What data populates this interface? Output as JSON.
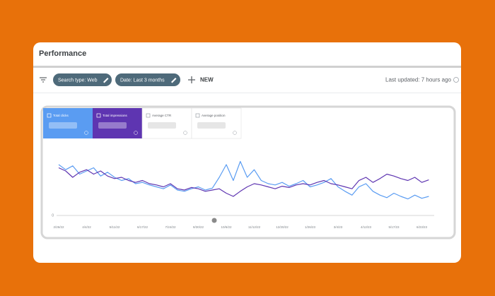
{
  "header": {
    "title": "Performance"
  },
  "toolbar": {
    "chips": [
      "Search type: Web",
      "Date: Last 3 months"
    ],
    "new_button": "NEW",
    "last_updated": "Last updated: 7 hours ago"
  },
  "metric_tabs": [
    "Average CTR",
    "Average position"
  ],
  "chart_data": {
    "type": "line",
    "categories": [
      "2/26/22",
      null,
      null,
      null,
      "4/4/22",
      null,
      null,
      null,
      "5/11/22",
      null,
      null,
      null,
      "6/17/22",
      null,
      null,
      null,
      "7/24/22",
      null,
      null,
      null,
      "8/30/22",
      null,
      null,
      null,
      "10/6/22",
      null,
      null,
      null,
      "11/12/22",
      null,
      null,
      null,
      "12/20/22",
      null,
      null,
      null,
      "1/26/23",
      null,
      null,
      null,
      "3/4/23",
      null,
      null,
      null,
      "4/12/23",
      null,
      null,
      null,
      "5/17/23",
      null,
      null,
      null,
      "6/23/23",
      null
    ],
    "series": [
      {
        "name": "Total clicks",
        "color": "#5a9cf2",
        "values": [
          80,
          72,
          78,
          65,
          70,
          75,
          62,
          68,
          60,
          55,
          58,
          50,
          52,
          48,
          45,
          42,
          48,
          40,
          38,
          42,
          45,
          40,
          43,
          60,
          80,
          55,
          85,
          60,
          72,
          55,
          50,
          48,
          52,
          46,
          50,
          55,
          45,
          48,
          52,
          58,
          45,
          38,
          32,
          45,
          50,
          38,
          32,
          28,
          35,
          30,
          26,
          32,
          27,
          30
        ]
      },
      {
        "name": "Total impressions",
        "color": "#5e35b1",
        "values": [
          75,
          70,
          60,
          68,
          72,
          65,
          70,
          62,
          58,
          60,
          55,
          52,
          55,
          50,
          48,
          45,
          50,
          42,
          40,
          44,
          42,
          38,
          40,
          42,
          35,
          30,
          38,
          45,
          50,
          48,
          45,
          42,
          46,
          44,
          48,
          50,
          48,
          52,
          55,
          50,
          48,
          45,
          42,
          55,
          60,
          52,
          58,
          65,
          62,
          58,
          55,
          60,
          52,
          56
        ]
      }
    ],
    "ylim": [
      0,
      100
    ],
    "yticks": [
      0
    ],
    "grid": true
  }
}
